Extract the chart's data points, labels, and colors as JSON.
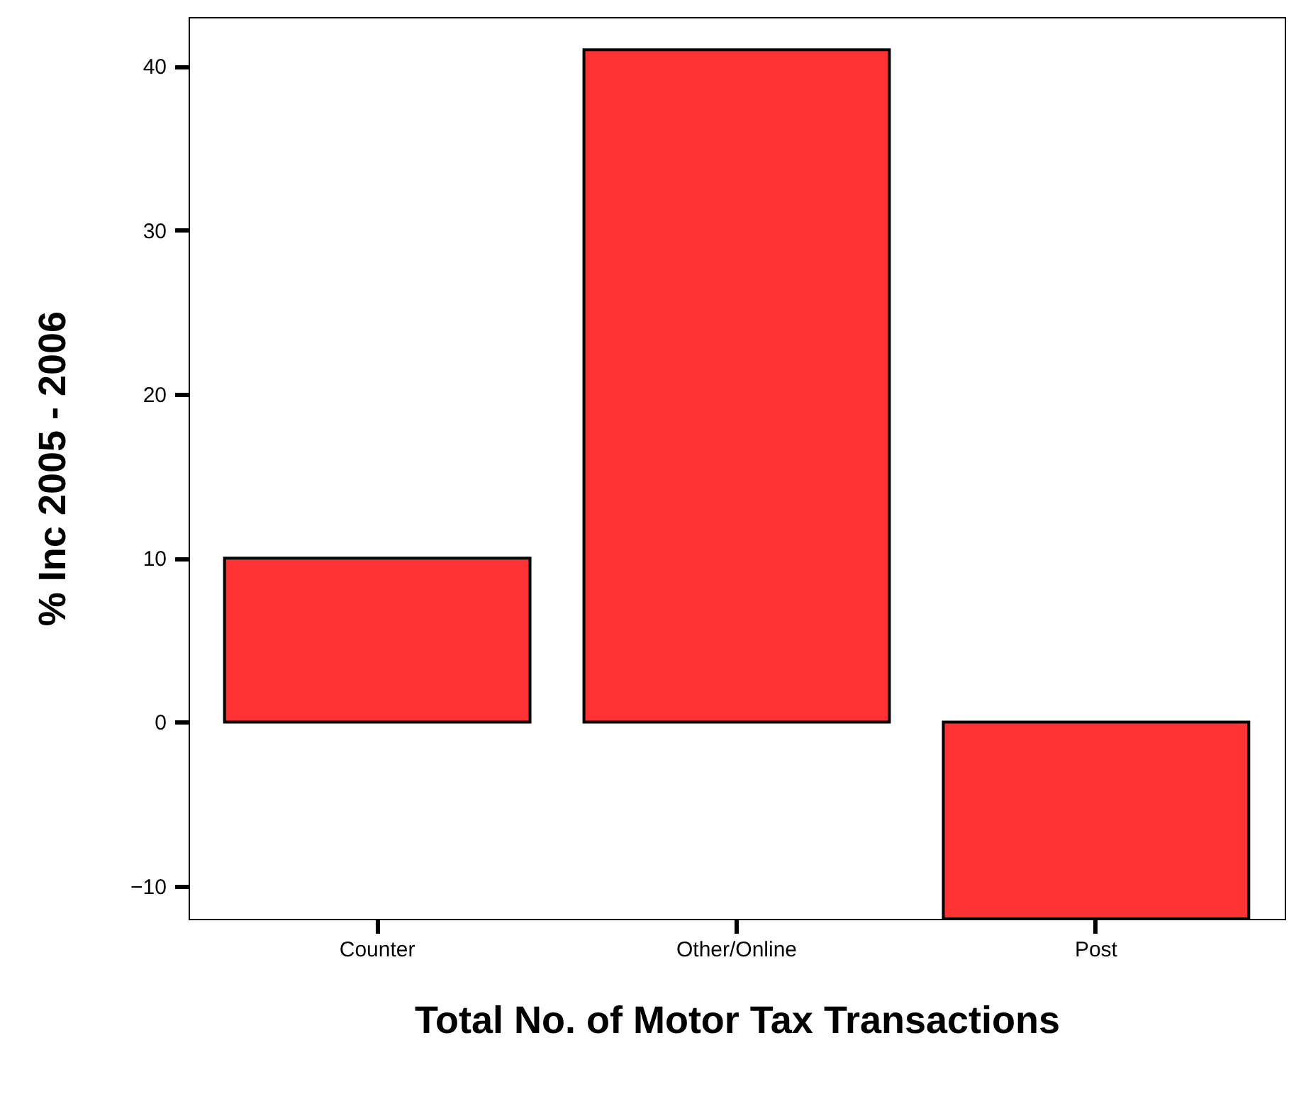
{
  "chart_data": {
    "type": "bar",
    "xlabel": "Total No. of Motor Tax Transactions",
    "ylabel": "% Inc 2005 - 2006",
    "categories": [
      "Counter",
      "Other/Online",
      "Post"
    ],
    "values": [
      10,
      41,
      -12
    ],
    "color": "#ff3333",
    "ylim": [
      -12,
      43
    ],
    "yticks": [
      -10,
      0,
      10,
      20,
      30,
      40
    ],
    "grid": false
  }
}
